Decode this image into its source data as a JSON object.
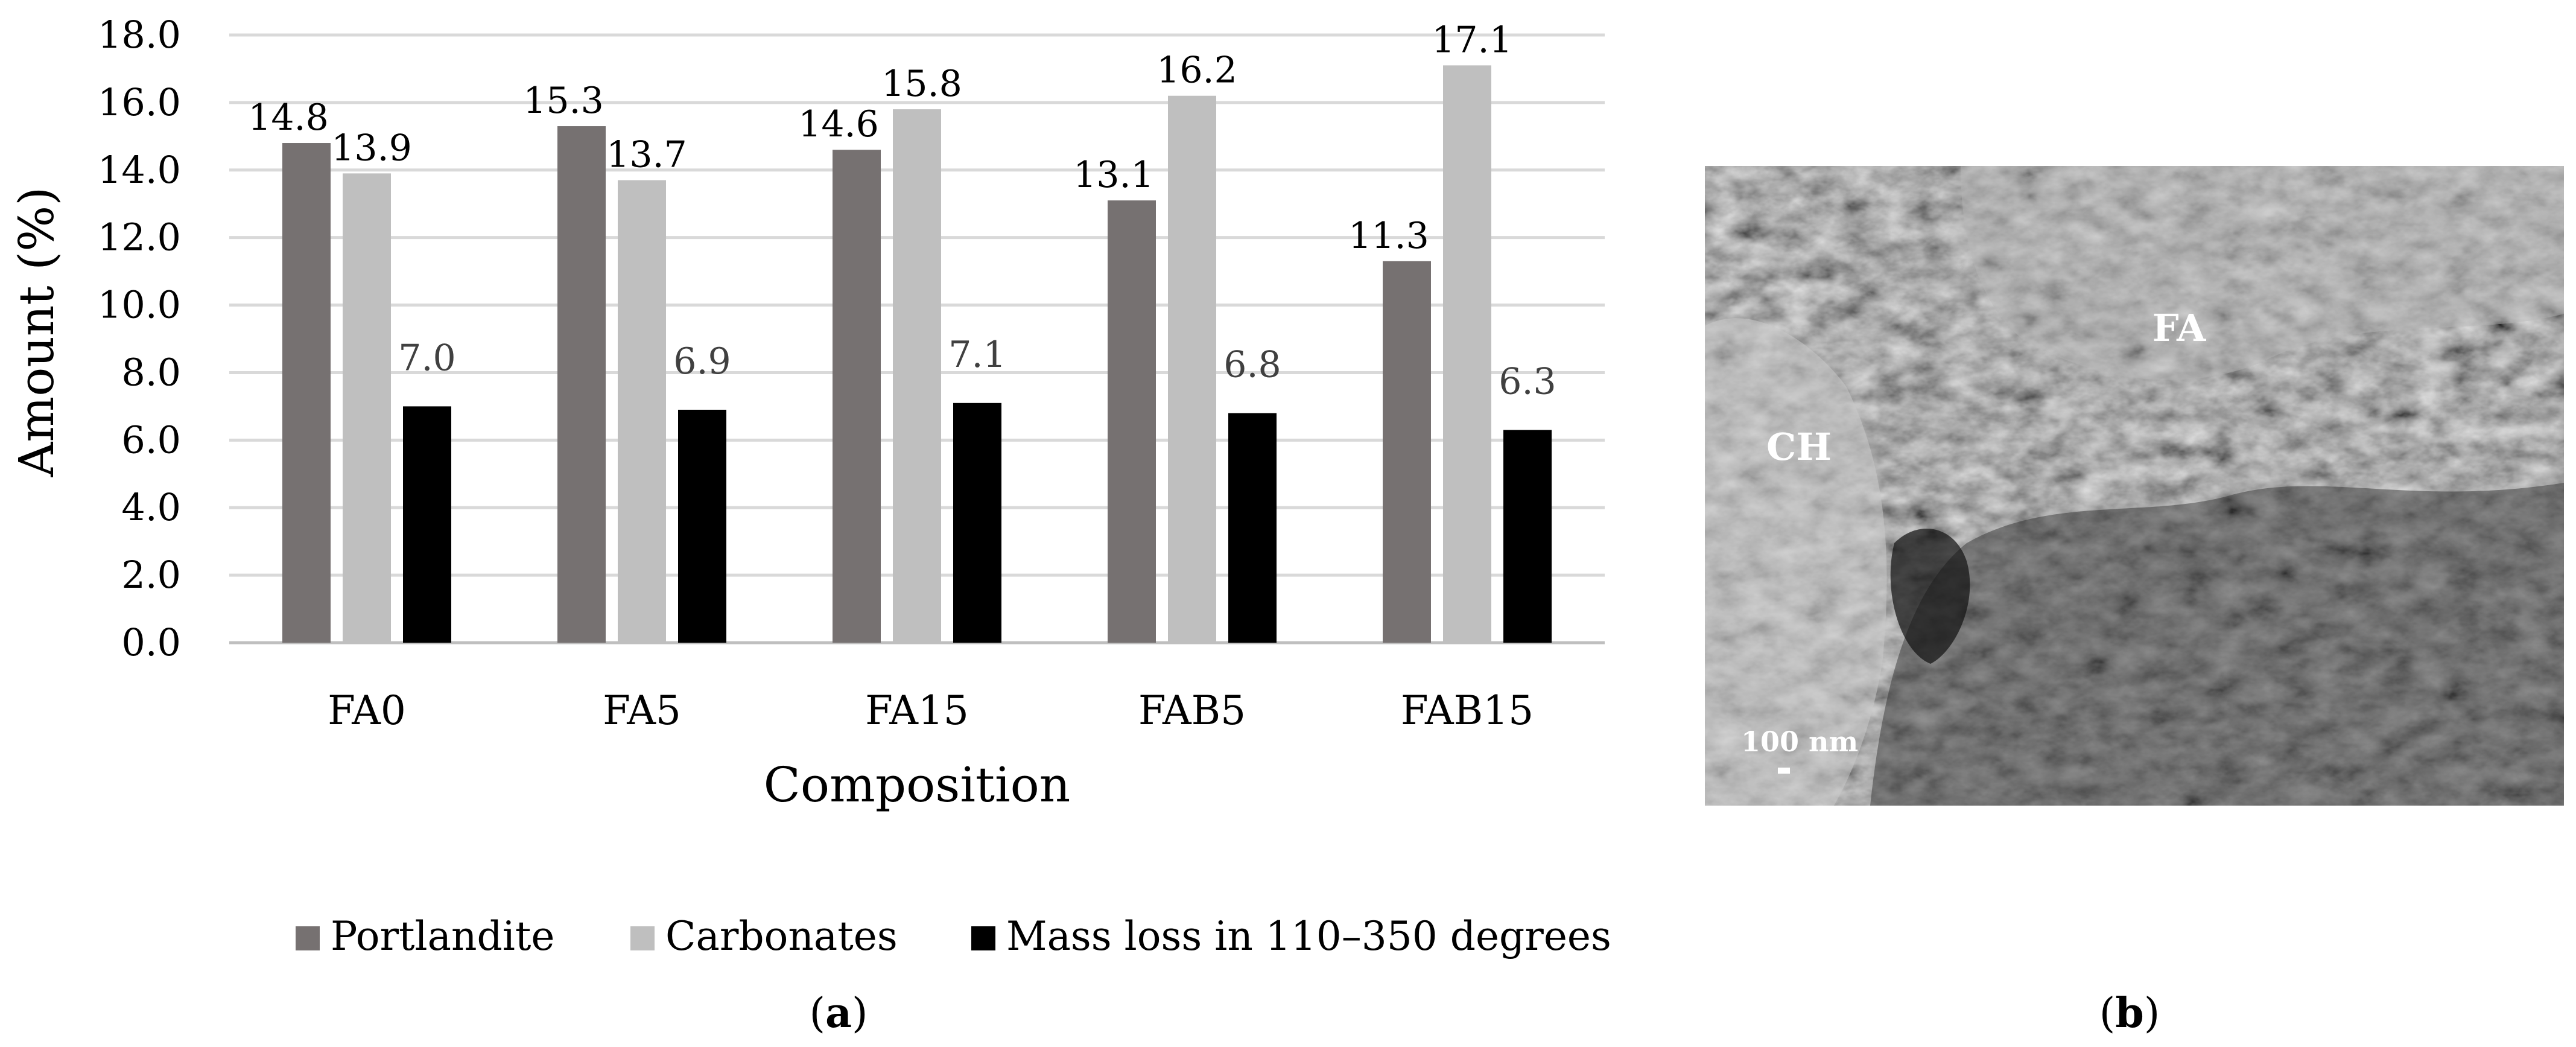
{
  "chart_data": {
    "type": "bar",
    "title": "",
    "xlabel": "Composition",
    "ylabel": "Amount (%)",
    "ylim": [
      0,
      18
    ],
    "ytick_step": 2,
    "ytick_labels": [
      "0.0",
      "2.0",
      "4.0",
      "6.0",
      "8.0",
      "10.0",
      "12.0",
      "14.0",
      "16.0",
      "18.0"
    ],
    "grid": true,
    "legend_position": "bottom",
    "categories": [
      "FA0",
      "FA5",
      "FA15",
      "FAB5",
      "FAB15"
    ],
    "series": [
      {
        "name": "Portlandite",
        "color": "#767171",
        "values": [
          14.8,
          15.3,
          14.6,
          13.1,
          11.3
        ],
        "labels": [
          "14.8",
          "15.3",
          "14.6",
          "13.1",
          "11.3"
        ]
      },
      {
        "name": "Carbonates",
        "color": "#bfbfbf",
        "values": [
          13.9,
          13.7,
          15.8,
          16.2,
          17.1
        ],
        "labels": [
          "13.9",
          "13.7",
          "15.8",
          "16.2",
          "17.1"
        ]
      },
      {
        "name": "Mass loss in 110–350 degrees",
        "color": "#000000",
        "values": [
          7.0,
          6.9,
          7.1,
          6.8,
          6.3
        ],
        "labels": [
          "7.0",
          "6.9",
          "7.1",
          "6.8",
          "6.3"
        ]
      }
    ]
  },
  "panels": {
    "a_label_open": "(",
    "a_label_letter": "a",
    "a_label_close": ")",
    "b_label_open": "(",
    "b_label_letter": "b",
    "b_label_close": ")"
  },
  "micrograph": {
    "label_fa": "FA",
    "label_ch": "CH",
    "scale_bar": "100 nm"
  },
  "colors": {
    "gridline": "#d9d9d9",
    "axis_line": "#bfbfbf",
    "data_label_dark": "#000000",
    "data_label_mass": "#404040"
  }
}
